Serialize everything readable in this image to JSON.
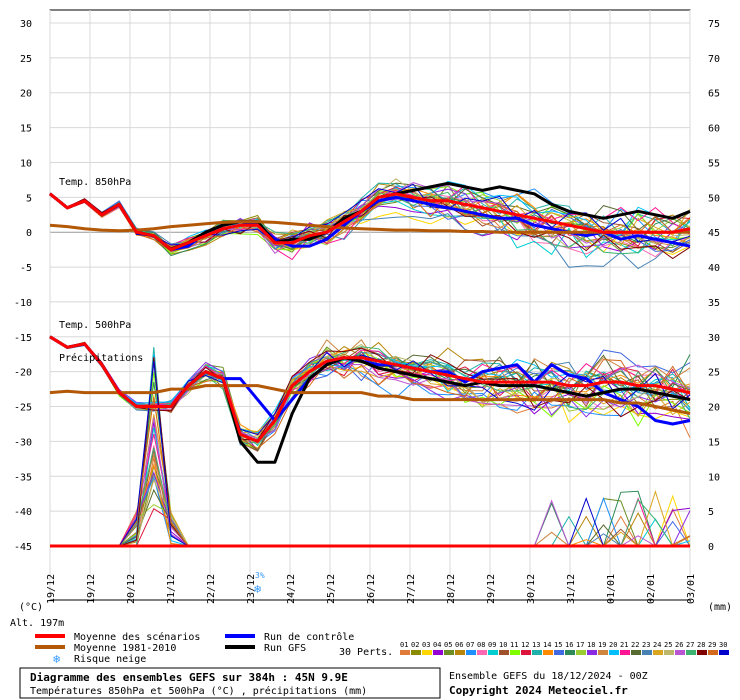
{
  "chart_data": {
    "type": "line",
    "title": "Diagramme des ensembles GEFS sur 384h : 45N 9.9E",
    "subtitle": "Températures 850hPa et 500hPa (°C) , précipitations (mm)",
    "left_axis_label": "(°C)",
    "right_axis_label": "(mm)",
    "left_ticks": [
      30,
      25,
      20,
      15,
      10,
      5,
      0,
      -5,
      -10,
      -15,
      -20,
      -25,
      -30,
      -35,
      -40,
      -45
    ],
    "right_ticks": [
      75,
      70,
      65,
      60,
      55,
      50,
      45,
      40,
      35,
      30,
      25,
      20,
      15,
      10,
      5,
      0
    ],
    "ylim": [
      -45,
      30
    ],
    "y2lim": [
      0,
      75
    ],
    "x_labels": [
      "19/12",
      "19/12",
      "20/12",
      "21/12",
      "22/12",
      "23/12",
      "24/12",
      "25/12",
      "26/12",
      "27/12",
      "28/12",
      "29/12",
      "30/12",
      "31/12",
      "01/01",
      "02/01",
      "03/01"
    ],
    "panel_labels": [
      "Temp. 850hPa",
      "Temp. 500hPa",
      "Précipitations"
    ],
    "altitude_label": "Alt. 197m",
    "snow_risk": {
      "label": "3%",
      "date": "23/12"
    },
    "grid": true,
    "series_850": [
      {
        "name": "Moyenne des scénarios",
        "color": "#ff0000",
        "values": [
          5.5,
          3.5,
          4.5,
          2.5,
          4,
          0,
          -0.5,
          -2.5,
          -1.5,
          -0.5,
          0.5,
          1,
          1,
          -1.5,
          -1.5,
          -0.5,
          0,
          1.5,
          3,
          5,
          5.5,
          5,
          4.5,
          4.5,
          4,
          3.5,
          3,
          2.5,
          2,
          1.5,
          1,
          0.5,
          0,
          0,
          0,
          0,
          0,
          0.5
        ]
      },
      {
        "name": "Moyenne 1981-2010",
        "color": "#b35806",
        "values": [
          1,
          0.8,
          0.5,
          0.3,
          0.2,
          0.3,
          0.5,
          0.8,
          1,
          1.2,
          1.4,
          1.5,
          1.5,
          1.4,
          1.2,
          1,
          0.8,
          0.6,
          0.5,
          0.4,
          0.3,
          0.3,
          0.2,
          0.2,
          0.1,
          0.1,
          0,
          0,
          0,
          0,
          0,
          0,
          0,
          0,
          0,
          0,
          0,
          0
        ]
      },
      {
        "name": "Run de contrôle",
        "color": "#0000ff",
        "values": [
          5.5,
          3.5,
          4.5,
          2.5,
          4,
          0,
          -0.5,
          -2.5,
          -2,
          0,
          1,
          1.5,
          1,
          -1,
          -2,
          -2,
          -1,
          1,
          3,
          4.5,
          5,
          4.5,
          4,
          3.5,
          3,
          2.5,
          2,
          2,
          1,
          0.5,
          0,
          -0.5,
          0,
          -1,
          -0.5,
          -1,
          -1.5,
          -2
        ]
      },
      {
        "name": "Run GFS",
        "color": "#000000",
        "values": [
          5.5,
          3.5,
          4.5,
          2.5,
          4,
          0,
          -0.5,
          -2.5,
          -1.5,
          0,
          1,
          1.5,
          1.5,
          -1.5,
          -1,
          -1,
          0,
          2,
          3,
          5,
          5.5,
          6,
          6.5,
          7,
          6.5,
          6,
          6.5,
          6,
          5.5,
          4,
          3,
          2.5,
          2,
          2.5,
          3,
          2.5,
          2,
          3
        ]
      }
    ],
    "series_500": [
      {
        "name": "Moyenne des scénarios",
        "color": "#ff0000",
        "values": [
          -15,
          -16.5,
          -16,
          -19,
          -23,
          -25,
          -25,
          -25,
          -22,
          -20,
          -21,
          -29,
          -30,
          -27,
          -22,
          -20,
          -18.5,
          -18,
          -18,
          -18.5,
          -19,
          -19.5,
          -20,
          -20.5,
          -21,
          -21.5,
          -21.5,
          -21.5,
          -21.5,
          -21.5,
          -22,
          -22,
          -21.5,
          -21.5,
          -22,
          -22,
          -22.5,
          -23
        ]
      },
      {
        "name": "Moyenne 1981-2010",
        "color": "#b35806",
        "values": [
          -23,
          -22.8,
          -23,
          -23,
          -23,
          -23,
          -23,
          -22.5,
          -22.5,
          -22,
          -22,
          -22,
          -22,
          -22.5,
          -23,
          -23,
          -23,
          -23,
          -23,
          -23.5,
          -23.5,
          -24,
          -24,
          -24,
          -24,
          -24,
          -24,
          -24,
          -24,
          -24,
          -24,
          -24,
          -24,
          -24.5,
          -24.5,
          -25,
          -25.5,
          -26
        ]
      },
      {
        "name": "Run de contrôle",
        "color": "#0000ff",
        "values": [
          -15,
          -16.5,
          -16,
          -19,
          -23,
          -25,
          -25,
          -25,
          -22,
          -20,
          -21,
          -21,
          -24,
          -27,
          -24,
          -21,
          -19,
          -18,
          -18.5,
          -19,
          -19,
          -19.5,
          -20,
          -20,
          -21.5,
          -20,
          -19.5,
          -19,
          -21.5,
          -19,
          -20.5,
          -21,
          -23,
          -24,
          -25,
          -27,
          -27.5,
          -27
        ]
      },
      {
        "name": "Run GFS",
        "color": "#000000",
        "values": [
          -15,
          -16.5,
          -16,
          -19,
          -23,
          -25,
          -25,
          -25,
          -22,
          -20,
          -21,
          -30,
          -33,
          -33,
          -26,
          -21,
          -19,
          -18,
          -18.5,
          -19.5,
          -20,
          -20.5,
          -21,
          -21.5,
          -22,
          -21.5,
          -22,
          -22,
          -22,
          -22.5,
          -23,
          -23.5,
          -23,
          -22.5,
          -22.5,
          -23,
          -23.5,
          -24
        ]
      }
    ],
    "precip_series": [
      {
        "name": "Moyenne des scénarios",
        "color": "#ff0000",
        "values": [
          0,
          0,
          0,
          0,
          0,
          0,
          0,
          0,
          0,
          0,
          0,
          0,
          0,
          0,
          0,
          0,
          0,
          0,
          0,
          0,
          0,
          0,
          0,
          0,
          0,
          0,
          0,
          0,
          0,
          0,
          0,
          0,
          0,
          0,
          0,
          0,
          0,
          0,
          0,
          0,
          0,
          0,
          0,
          0,
          0,
          0,
          0,
          0,
          0,
          0,
          0,
          0,
          0,
          0,
          0,
          0,
          0,
          0,
          0,
          0,
          0,
          0,
          0,
          0,
          0,
          0,
          0,
          0,
          0,
          0,
          0,
          0,
          0,
          0,
          0,
          0,
          0,
          0,
          0,
          0
        ]
      }
    ]
  },
  "legend": {
    "mean_scenarios": "Moyenne des scénarios",
    "mean_1981": "Moyenne 1981-2010",
    "snow_risk": "Risque neige",
    "control_run": "Run de contrôle",
    "gfs_run": "Run GFS",
    "perts_label": "30 Perts.",
    "pert_numbers": [
      "01",
      "02",
      "03",
      "04",
      "05",
      "06",
      "07",
      "08",
      "09",
      "10",
      "11",
      "12",
      "13",
      "14",
      "15",
      "16",
      "17",
      "18",
      "19",
      "20",
      "21",
      "22",
      "23",
      "24",
      "25",
      "26",
      "27",
      "28",
      "29",
      "30"
    ],
    "pert_colors": [
      "#e07b39",
      "#8b8b00",
      "#ffd700",
      "#9400d3",
      "#6b8e23",
      "#b8860b",
      "#1e90ff",
      "#ff69b4",
      "#00ced1",
      "#a0522d",
      "#7fff00",
      "#dc143c",
      "#20b2aa",
      "#ff8c00",
      "#4169e1",
      "#2e8b57",
      "#9acd32",
      "#8a2be2",
      "#cd853f",
      "#00bfff",
      "#ff1493",
      "#556b2f",
      "#4682b4",
      "#daa520",
      "#bdb76b",
      "#ba55d3",
      "#3cb371",
      "#800000",
      "#d2691e",
      "#0000cd"
    ]
  },
  "footer": {
    "title": "Diagramme des ensembles GEFS sur 384h : 45N 9.9E",
    "subtitle": "Températures 850hPa et 500hPa (°C) , précipitations (mm)",
    "ensemble": "Ensemble GEFS du 18/12/2024 - 00Z",
    "copyright": "Copyright 2024 Meteociel.fr"
  }
}
